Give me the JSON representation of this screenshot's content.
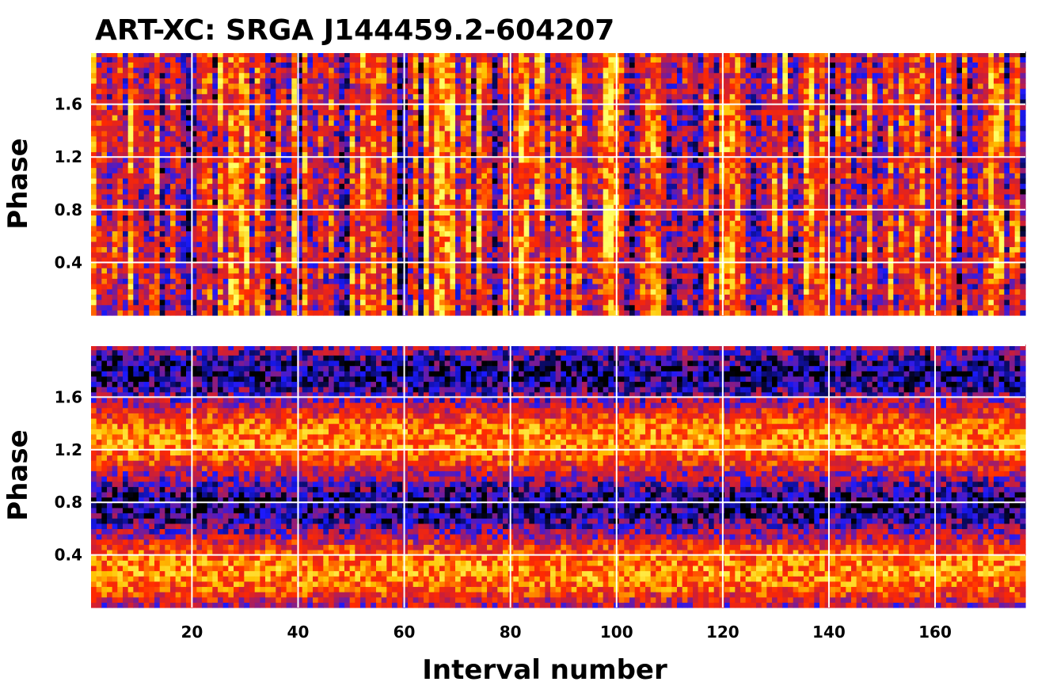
{
  "chart_data": {
    "type": "heatmap",
    "title": "ART-XC: SRGA J144459.2-604207",
    "xlabel": "Interval number",
    "x_range": [
      1,
      177
    ],
    "x_ticks": [
      "20",
      "40",
      "60",
      "80",
      "100",
      "120",
      "140",
      "160"
    ],
    "y_range": [
      0,
      2
    ],
    "colormap": [
      "#000000",
      "#1a1aff",
      "#c81e3c",
      "#ff2a00",
      "#ffc000",
      "#ffff66"
    ],
    "panels": [
      {
        "name": "top",
        "ylabel": "Phase",
        "y_ticks": [
          "0.4",
          "0.8",
          "1.2",
          "1.6"
        ],
        "description_pattern": "noisy, no coherent pulse; bright patches near intervals 65-70 and 97-100"
      },
      {
        "name": "bottom",
        "ylabel": "Phase",
        "y_ticks": [
          "0.4",
          "0.8",
          "1.2",
          "1.6"
        ],
        "description_pattern": "coherent pulse: bright bands at phase ~0.3 and ~1.3, dark bands at ~0.8 and ~1.8"
      }
    ]
  }
}
